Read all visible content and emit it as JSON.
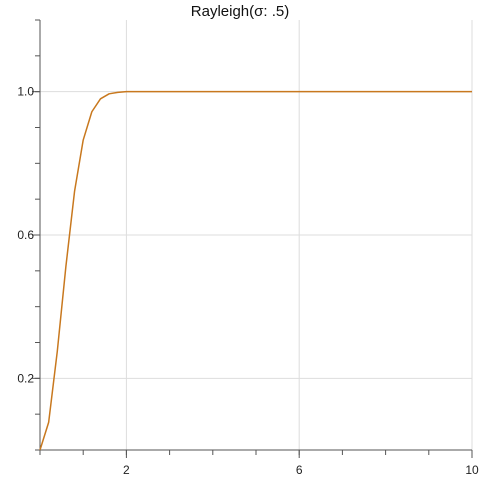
{
  "chart_data": {
    "type": "line",
    "title": "Rayleigh(σ: .5)",
    "xlabel": "",
    "ylabel": "",
    "xlim": [
      0,
      10
    ],
    "ylim": [
      0,
      1.2
    ],
    "grid": true,
    "x_ticks": [
      2,
      6,
      10
    ],
    "x_tick_labels": [
      "2",
      "6",
      "10"
    ],
    "x_minor_ticks": [
      0,
      1,
      2,
      3,
      4,
      5,
      6,
      7,
      8,
      9,
      10
    ],
    "y_ticks": [
      0.2,
      0.6,
      1.0
    ],
    "y_tick_labels": [
      "0.2",
      "0.6",
      "1.0"
    ],
    "y_minor_ticks": [
      0.0,
      0.1,
      0.2,
      0.3,
      0.4,
      0.5,
      0.6,
      0.7,
      0.8,
      0.9,
      1.0,
      1.1,
      1.2
    ],
    "series": [
      {
        "color": "#c8781e",
        "x": [
          0.0,
          0.2,
          0.4,
          0.6,
          0.8,
          1.0,
          1.2,
          1.4,
          1.6,
          1.8,
          2.0,
          3.0,
          4.0,
          5.0,
          6.0,
          7.0,
          8.0,
          9.0,
          10.0
        ],
        "y": [
          0.0,
          0.077,
          0.275,
          0.513,
          0.722,
          0.865,
          0.944,
          0.98,
          0.994,
          0.998,
          1.0,
          1.0,
          1.0,
          1.0,
          1.0,
          1.0,
          1.0,
          1.0,
          1.0
        ]
      }
    ]
  }
}
